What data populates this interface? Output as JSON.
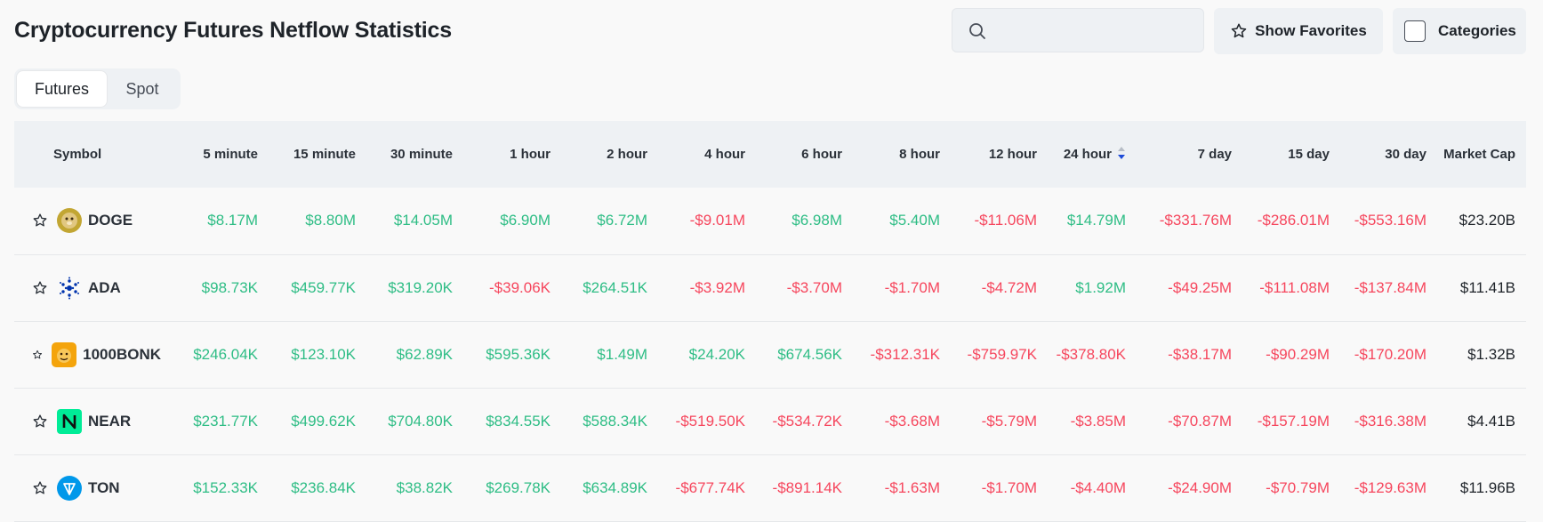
{
  "page": {
    "title": "Cryptocurrency Futures Netflow Statistics"
  },
  "search": {
    "placeholder": ""
  },
  "toolbar": {
    "favorites_label": "Show Favorites",
    "categories_label": "Categories"
  },
  "tabs": [
    {
      "label": "Futures",
      "active": true
    },
    {
      "label": "Spot",
      "active": false
    }
  ],
  "table": {
    "columns": [
      "Symbol",
      "5 minute",
      "15 minute",
      "30 minute",
      "1 hour",
      "2 hour",
      "4 hour",
      "6 hour",
      "8 hour",
      "12 hour",
      "24 hour",
      "7 day",
      "15 day",
      "30 day",
      "Market Cap"
    ],
    "sorted_column": "24 hour",
    "colors": {
      "positive": "#2ebd85",
      "negative": "#f6465d",
      "sort_active": "#1e4bd8"
    },
    "rows": [
      {
        "symbol": "DOGE",
        "logo_icon": "doge-icon",
        "values": [
          "$8.17M",
          "$8.80M",
          "$14.05M",
          "$6.90M",
          "$6.72M",
          "-$9.01M",
          "$6.98M",
          "$5.40M",
          "-$11.06M",
          "$14.79M",
          "-$331.76M",
          "-$286.01M",
          "-$553.16M"
        ],
        "market_cap": "$23.20B"
      },
      {
        "symbol": "ADA",
        "logo_icon": "cardano-icon",
        "values": [
          "$98.73K",
          "$459.77K",
          "$319.20K",
          "-$39.06K",
          "$264.51K",
          "-$3.92M",
          "-$3.70M",
          "-$1.70M",
          "-$4.72M",
          "$1.92M",
          "-$49.25M",
          "-$111.08M",
          "-$137.84M"
        ],
        "market_cap": "$11.41B"
      },
      {
        "symbol": "1000BONK",
        "logo_icon": "bonk-icon",
        "values": [
          "$246.04K",
          "$123.10K",
          "$62.89K",
          "$595.36K",
          "$1.49M",
          "$24.20K",
          "$674.56K",
          "-$312.31K",
          "-$759.97K",
          "-$378.80K",
          "-$38.17M",
          "-$90.29M",
          "-$170.20M"
        ],
        "market_cap": "$1.32B"
      },
      {
        "symbol": "NEAR",
        "logo_icon": "near-icon",
        "values": [
          "$231.77K",
          "$499.62K",
          "$704.80K",
          "$834.55K",
          "$588.34K",
          "-$519.50K",
          "-$534.72K",
          "-$3.68M",
          "-$5.79M",
          "-$3.85M",
          "-$70.87M",
          "-$157.19M",
          "-$316.38M"
        ],
        "market_cap": "$4.41B"
      },
      {
        "symbol": "TON",
        "logo_icon": "ton-icon",
        "values": [
          "$152.33K",
          "$236.84K",
          "$38.82K",
          "$269.78K",
          "$634.89K",
          "-$677.74K",
          "-$891.14K",
          "-$1.63M",
          "-$1.70M",
          "-$4.40M",
          "-$24.90M",
          "-$70.79M",
          "-$129.63M"
        ],
        "market_cap": "$11.96B"
      }
    ]
  }
}
